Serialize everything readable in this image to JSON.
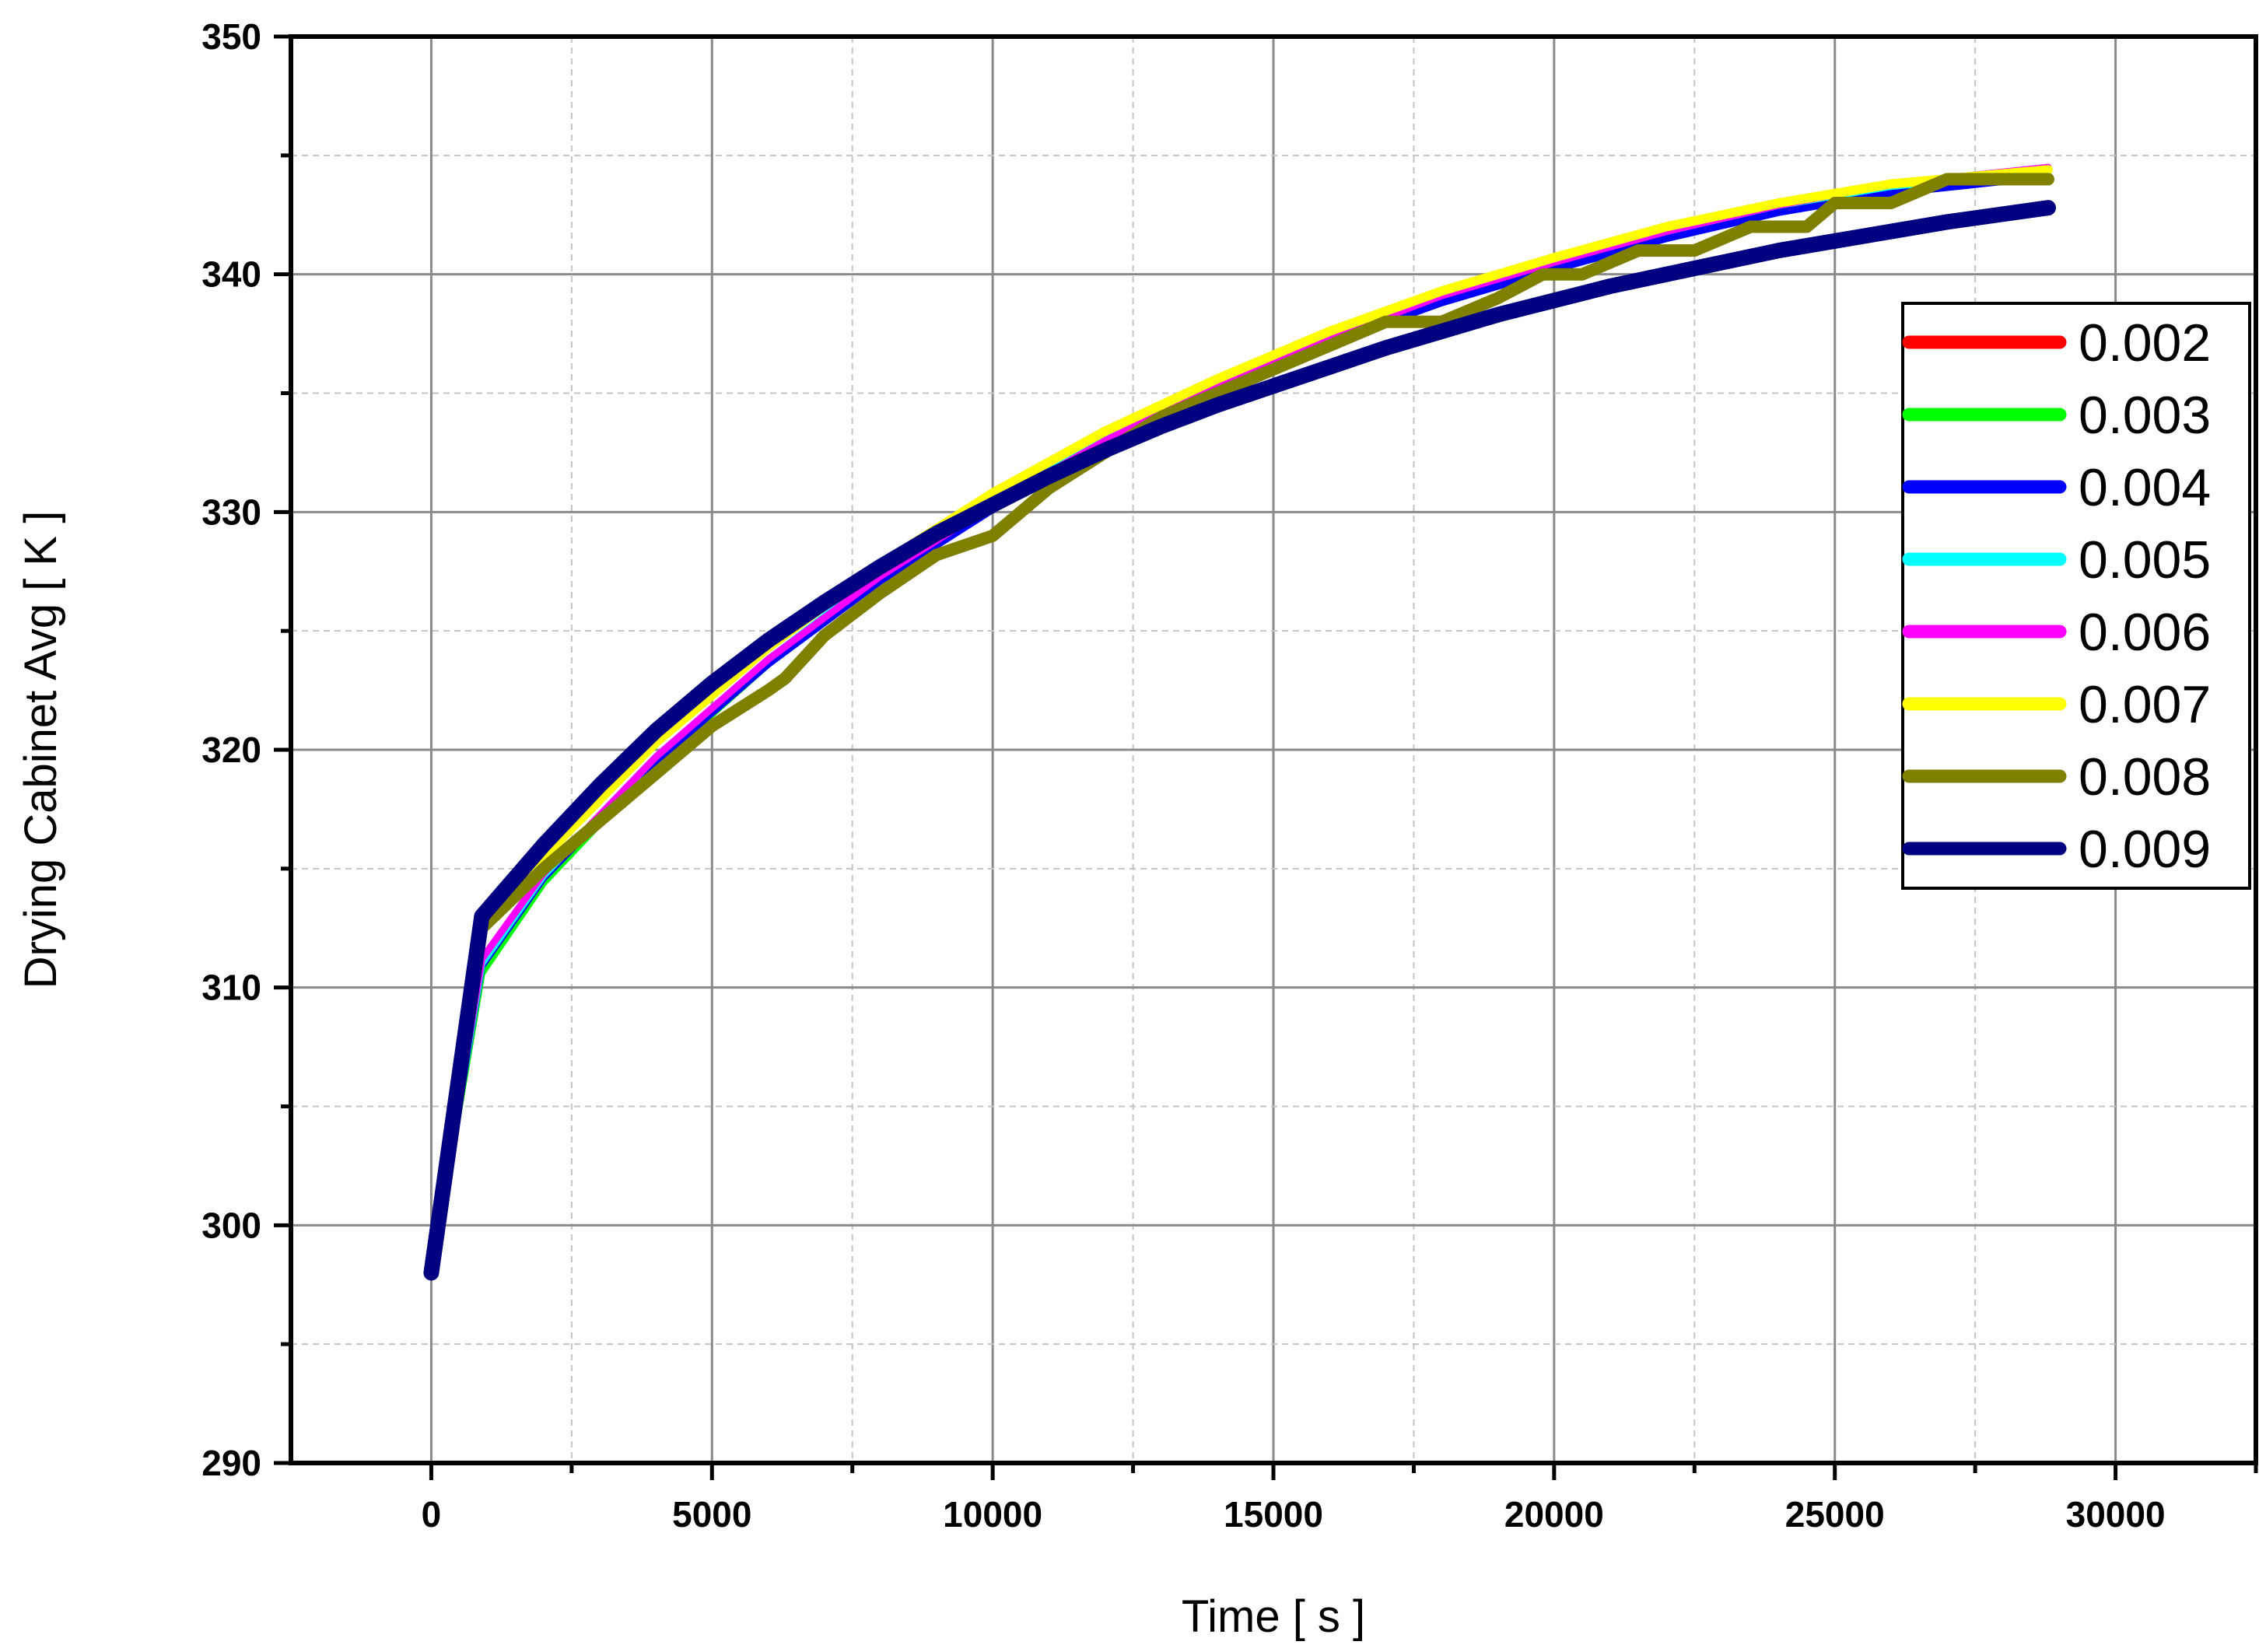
{
  "chart_data": {
    "type": "line",
    "title": "",
    "xlabel": "Time [ s ]",
    "ylabel": "Drying Cabinet Avg [ K ]",
    "xlim": [
      -2500,
      32500
    ],
    "ylim": [
      290,
      350
    ],
    "xticks": [
      0,
      5000,
      10000,
      15000,
      20000,
      25000,
      30000
    ],
    "yticks": [
      290,
      300,
      310,
      320,
      330,
      340,
      350
    ],
    "grid": true,
    "legend_position": "right",
    "series": [
      {
        "name": "0.002",
        "color": "#ff0000",
        "x": [
          0,
          900,
          2000,
          4000,
          6000,
          8000,
          10000,
          12000,
          14000,
          16000,
          18000,
          20000,
          22000,
          24000,
          26000,
          28800
        ],
        "y": [
          298,
          311,
          314.7,
          319.6,
          323.8,
          327.3,
          330.3,
          332.9,
          335.2,
          337.2,
          339.0,
          340.4,
          341.7,
          342.8,
          343.6,
          344.3
        ]
      },
      {
        "name": "0.003",
        "color": "#00ff00",
        "x": [
          0,
          900,
          2000,
          4000,
          6000,
          8000,
          10000,
          12000,
          14000,
          16000,
          18000,
          20000,
          22000,
          24000,
          26000,
          28800
        ],
        "y": [
          298,
          310.6,
          314.4,
          319.4,
          323.6,
          327.2,
          330.2,
          332.9,
          335.2,
          337.2,
          339.0,
          340.4,
          341.7,
          342.8,
          343.6,
          344.2
        ]
      },
      {
        "name": "0.004",
        "color": "#0000ff",
        "x": [
          0,
          900,
          2000,
          4000,
          6000,
          8000,
          10000,
          12000,
          14000,
          16000,
          18000,
          20000,
          22000,
          24000,
          26000,
          28800
        ],
        "y": [
          298,
          310.9,
          314.6,
          319.5,
          323.6,
          327.1,
          330.1,
          332.8,
          335.1,
          337.1,
          338.8,
          340.2,
          341.5,
          342.6,
          343.4,
          344.1
        ]
      },
      {
        "name": "0.005",
        "color": "#00ffff",
        "x": [
          0,
          900,
          2000,
          4000,
          6000,
          8000,
          10000,
          12000,
          14000,
          16000,
          18000,
          20000,
          22000,
          24000,
          26000,
          28800
        ],
        "y": [
          298,
          311.0,
          314.7,
          319.7,
          323.8,
          327.4,
          330.4,
          333.1,
          335.5,
          337.5,
          339.2,
          340.6,
          341.8,
          342.9,
          343.7,
          344.3
        ]
      },
      {
        "name": "0.006",
        "color": "#ff00ff",
        "x": [
          0,
          900,
          2000,
          4000,
          6000,
          8000,
          10000,
          12000,
          14000,
          16000,
          18000,
          20000,
          22000,
          24000,
          26000,
          28800
        ],
        "y": [
          298,
          311.2,
          314.8,
          319.7,
          323.8,
          327.3,
          330.3,
          333.0,
          335.3,
          337.3,
          339.1,
          340.5,
          341.8,
          342.9,
          343.8,
          344.5
        ]
      },
      {
        "name": "0.007",
        "color": "#ffff00",
        "x": [
          0,
          900,
          2000,
          4000,
          6000,
          8000,
          10000,
          12000,
          14000,
          16000,
          18000,
          20000,
          22000,
          24000,
          26000,
          28800
        ],
        "y": [
          298,
          312.4,
          315.5,
          320.3,
          324.3,
          327.8,
          330.8,
          333.4,
          335.6,
          337.6,
          339.3,
          340.7,
          342.0,
          343.0,
          343.8,
          344.4
        ]
      },
      {
        "name": "0.008",
        "color": "#808000",
        "x": [
          0,
          900,
          2000,
          3000,
          4000,
          5000,
          6000,
          6300,
          7000,
          8000,
          9000,
          10000,
          11000,
          12000,
          13000,
          14000,
          15000,
          16000,
          17000,
          18000,
          19000,
          19800,
          20500,
          21500,
          22500,
          23500,
          24500,
          25000,
          26000,
          27000,
          28000,
          28800
        ],
        "y": [
          298,
          312.5,
          315,
          317,
          319,
          321,
          322.5,
          323,
          324.8,
          326.6,
          328.2,
          329,
          331,
          332.5,
          334,
          335,
          336,
          337,
          338,
          338,
          339,
          340,
          340,
          341,
          341,
          342,
          342,
          343,
          343,
          344,
          344,
          344
        ]
      },
      {
        "name": "0.009",
        "color": "#000080",
        "x": [
          0,
          900,
          2000,
          3000,
          4000,
          5000,
          6000,
          7000,
          8000,
          9000,
          10000,
          11000,
          12000,
          13000,
          14000,
          15000,
          16000,
          17000,
          18000,
          19000,
          20000,
          21000,
          22000,
          23000,
          24000,
          25000,
          26000,
          27000,
          28800
        ],
        "y": [
          298,
          313,
          316,
          318.5,
          320.8,
          322.8,
          324.6,
          326.2,
          327.7,
          329.1,
          330.3,
          331.5,
          332.6,
          333.6,
          334.5,
          335.3,
          336.1,
          336.9,
          337.6,
          338.3,
          338.9,
          339.5,
          340.0,
          340.5,
          341.0,
          341.4,
          341.8,
          342.2,
          342.8
        ]
      }
    ]
  }
}
